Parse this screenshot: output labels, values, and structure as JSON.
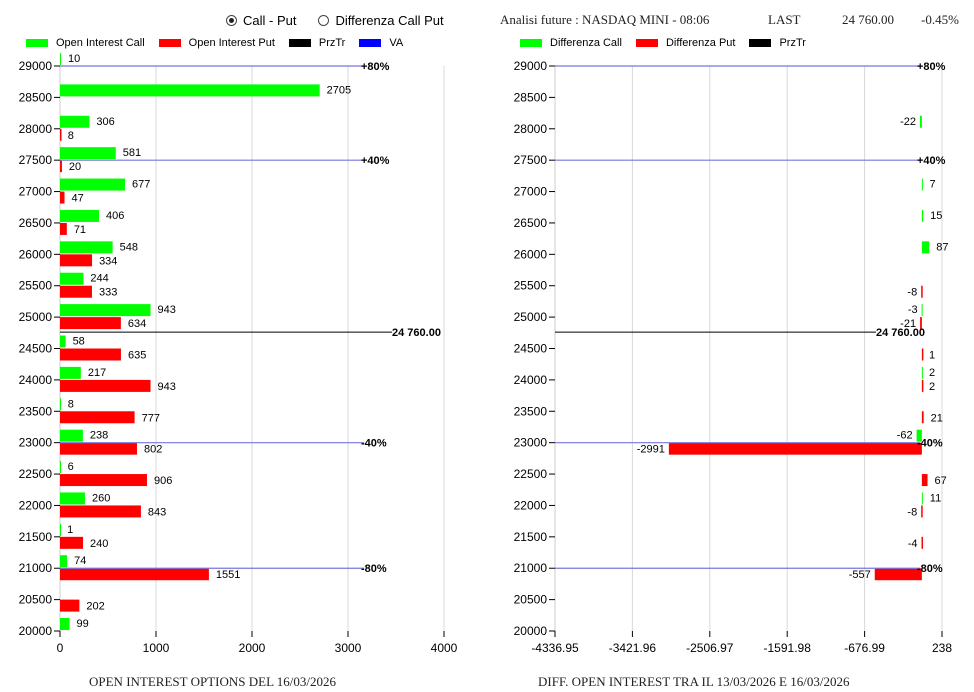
{
  "controls": {
    "radio_options": [
      {
        "label": "Call - Put",
        "selected": true
      },
      {
        "label": "Differenza Call Put",
        "selected": false
      }
    ]
  },
  "header": {
    "analysis_label": "Analisi future : NASDAQ MINI - 08:06",
    "last_label": "LAST",
    "last_value": "24 760.00",
    "change": "-0.45%"
  },
  "colors": {
    "call": "#00ff00",
    "put": "#ff0000",
    "przTr": "#000000",
    "va": "#0000ff",
    "va_line": "#7777dd",
    "grid": "#d8d8d8"
  },
  "chart_data": [
    {
      "type": "bar",
      "orientation": "horizontal",
      "title": "OPEN INTEREST OPTIONS DEL 16/03/2026",
      "legend": [
        {
          "name": "Open Interest Call",
          "color": "#00ff00"
        },
        {
          "name": "Open Interest Put",
          "color": "#ff0000"
        },
        {
          "name": "PrzTr",
          "color": "#000000"
        },
        {
          "name": "VA",
          "color": "#0000ff"
        }
      ],
      "legend_position": "top",
      "categories": [
        29000,
        28500,
        28000,
        27500,
        27000,
        26500,
        26000,
        25500,
        25000,
        24500,
        24000,
        23500,
        23000,
        22500,
        22000,
        21500,
        21000,
        20500,
        20000
      ],
      "series": [
        {
          "name": "Open Interest Call",
          "values": [
            10,
            2705,
            306,
            581,
            677,
            406,
            548,
            244,
            943,
            58,
            217,
            8,
            238,
            6,
            260,
            1,
            74,
            null,
            99
          ]
        },
        {
          "name": "Open Interest Put",
          "values": [
            null,
            null,
            8,
            20,
            47,
            71,
            334,
            333,
            634,
            635,
            943,
            777,
            802,
            906,
            843,
            240,
            1551,
            202,
            null
          ]
        }
      ],
      "xlim": [
        0,
        4000
      ],
      "xticks": [
        "0",
        "1000",
        "2000",
        "3000",
        "4000"
      ],
      "ylim": [
        20000,
        29000
      ],
      "grid": true,
      "price_line": {
        "value": 24760,
        "label": "24 760.00"
      },
      "va_lines": [
        {
          "value": 29000,
          "label": "+80%"
        },
        {
          "value": 27500,
          "label": "+40%"
        },
        {
          "value": 23000,
          "label": "-40%"
        },
        {
          "value": 21000,
          "label": "-80%"
        }
      ]
    },
    {
      "type": "bar",
      "orientation": "horizontal",
      "title": "DIFF. OPEN INTEREST TRA IL 13/03/2026 E 16/03/2026",
      "legend": [
        {
          "name": "Differenza Call",
          "color": "#00ff00"
        },
        {
          "name": "Differenza Put",
          "color": "#ff0000"
        },
        {
          "name": "PrzTr",
          "color": "#000000"
        }
      ],
      "legend_position": "top",
      "categories": [
        29000,
        28500,
        28000,
        27500,
        27000,
        26500,
        26000,
        25500,
        25000,
        24500,
        24000,
        23500,
        23000,
        22500,
        22000,
        21500,
        21000,
        20500,
        20000
      ],
      "series": [
        {
          "name": "Differenza Call",
          "values": [
            null,
            null,
            -22,
            null,
            7,
            15,
            87,
            null,
            -3,
            null,
            2,
            null,
            -62,
            null,
            11,
            null,
            null,
            null,
            null
          ]
        },
        {
          "name": "Differenza Put",
          "values": [
            null,
            null,
            null,
            null,
            null,
            null,
            null,
            -8,
            -21,
            1,
            2,
            21,
            -2991,
            67,
            -8,
            -4,
            -557,
            null,
            null
          ]
        }
      ],
      "xlim": [
        -4336.95,
        238
      ],
      "xticks": [
        "-4336.95",
        "-3421.96",
        "-2506.97",
        "-1591.98",
        "-676.99",
        "238"
      ],
      "ylim": [
        20000,
        29000
      ],
      "grid": true,
      "price_line": {
        "value": 24760,
        "label": "24 760.00"
      },
      "va_lines": [
        {
          "value": 29000,
          "label": "+80%"
        },
        {
          "value": 27500,
          "label": "+40%"
        },
        {
          "value": 23000,
          "label": "-40%"
        },
        {
          "value": 21000,
          "label": "-80%"
        }
      ]
    }
  ]
}
